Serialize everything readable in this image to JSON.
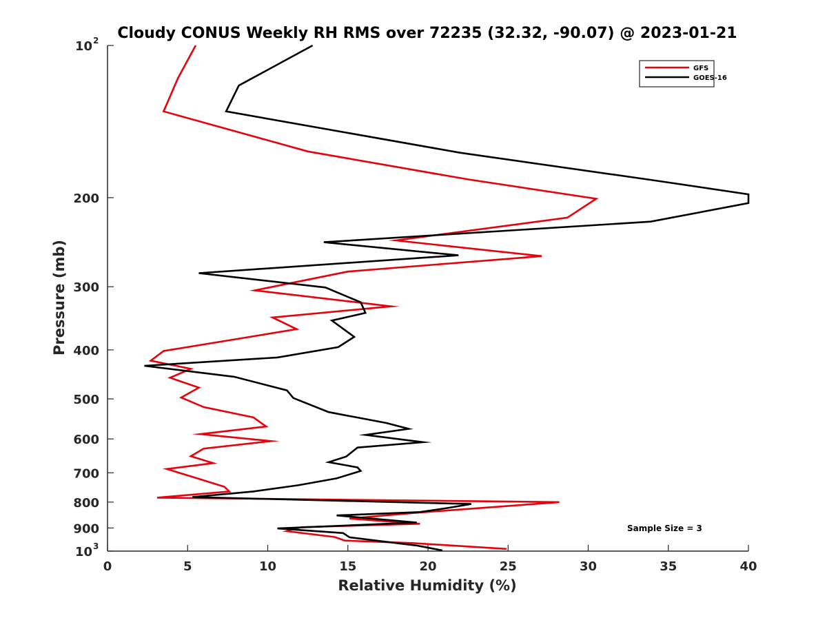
{
  "chart_data": {
    "type": "line",
    "title": "Cloudy CONUS Weekly RH RMS over 72235 (32.32, -90.07) @ 2023-01-21",
    "xlabel": "Relative Humidity (%)",
    "ylabel": "Pressure (mb)",
    "xlim": [
      0,
      40
    ],
    "ylim": [
      100,
      1000
    ],
    "yscale": "log",
    "y_reversed": true,
    "xticks": [
      "0",
      "5",
      "10",
      "15",
      "20",
      "25",
      "30",
      "35",
      "40"
    ],
    "yticks": [
      {
        "value": 100,
        "label": "10",
        "sup": "2"
      },
      {
        "value": 200,
        "label": "200",
        "sup": ""
      },
      {
        "value": 300,
        "label": "300",
        "sup": ""
      },
      {
        "value": 400,
        "label": "400",
        "sup": ""
      },
      {
        "value": 500,
        "label": "500",
        "sup": ""
      },
      {
        "value": 600,
        "label": "600",
        "sup": ""
      },
      {
        "value": 700,
        "label": "700",
        "sup": ""
      },
      {
        "value": 800,
        "label": "800",
        "sup": ""
      },
      {
        "value": 900,
        "label": "900",
        "sup": ""
      },
      {
        "value": 1000,
        "label": "10",
        "sup": "3"
      }
    ],
    "legend_position": "top-right",
    "annotation": "Sample Size = 3",
    "series": [
      {
        "name": "GFS",
        "color": "#e8000b",
        "points": [
          [
            5.5,
            100
          ],
          [
            4.4,
            116
          ],
          [
            3.5,
            135
          ],
          [
            12.5,
            162
          ],
          [
            22.5,
            184
          ],
          [
            30.5,
            201
          ],
          [
            28.7,
            219
          ],
          [
            18.0,
            243
          ],
          [
            27.1,
            261
          ],
          [
            15.0,
            280
          ],
          [
            9.2,
            305
          ],
          [
            17.7,
            328
          ],
          [
            10.3,
            345
          ],
          [
            11.8,
            364
          ],
          [
            8.0,
            381
          ],
          [
            3.5,
            402
          ],
          [
            2.7,
            420
          ],
          [
            5.2,
            436
          ],
          [
            3.9,
            454
          ],
          [
            5.7,
            475
          ],
          [
            4.6,
            497
          ],
          [
            6.0,
            519
          ],
          [
            9.1,
            544
          ],
          [
            9.9,
            567
          ],
          [
            5.8,
            587
          ],
          [
            10.2,
            606
          ],
          [
            6.0,
            627
          ],
          [
            5.2,
            649
          ],
          [
            6.6,
            670
          ],
          [
            3.7,
            688
          ],
          [
            5.6,
            718
          ],
          [
            7.3,
            746
          ],
          [
            7.6,
            762
          ],
          [
            3.1,
            784
          ],
          [
            28.2,
            800
          ],
          [
            19.0,
            841
          ],
          [
            15.1,
            862
          ],
          [
            19.5,
            883
          ],
          [
            12.1,
            897
          ],
          [
            11.2,
            913
          ],
          [
            14.2,
            938
          ],
          [
            14.8,
            953
          ],
          [
            19.0,
            964
          ],
          [
            24.9,
            990
          ]
        ]
      },
      {
        "name": "GOES-16",
        "color": "#000000",
        "points": [
          [
            12.8,
            100
          ],
          [
            8.2,
            120
          ],
          [
            7.4,
            135
          ],
          [
            22.0,
            163
          ],
          [
            34.2,
            185
          ],
          [
            40.0,
            197
          ],
          [
            40.0,
            205
          ],
          [
            33.9,
            223
          ],
          [
            13.5,
            245
          ],
          [
            21.9,
            260
          ],
          [
            5.7,
            282
          ],
          [
            13.6,
            301
          ],
          [
            15.8,
            322
          ],
          [
            16.1,
            338
          ],
          [
            14.0,
            350
          ],
          [
            15.4,
            377
          ],
          [
            14.4,
            395
          ],
          [
            10.6,
            414
          ],
          [
            2.3,
            430
          ],
          [
            7.9,
            452
          ],
          [
            11.2,
            481
          ],
          [
            11.6,
            498
          ],
          [
            13.8,
            531
          ],
          [
            17.4,
            558
          ],
          [
            18.8,
            573
          ],
          [
            16.1,
            589
          ],
          [
            19.7,
            609
          ],
          [
            15.6,
            624
          ],
          [
            14.9,
            650
          ],
          [
            13.8,
            667
          ],
          [
            15.6,
            683
          ],
          [
            15.8,
            694
          ],
          [
            14.3,
            718
          ],
          [
            11.9,
            741
          ],
          [
            9.1,
            762
          ],
          [
            5.3,
            782
          ],
          [
            22.7,
            807
          ],
          [
            21.2,
            822
          ],
          [
            19.5,
            837
          ],
          [
            14.3,
            850
          ],
          [
            19.3,
            878
          ],
          [
            10.6,
            902
          ],
          [
            14.7,
            921
          ],
          [
            15.1,
            939
          ],
          [
            19.3,
            975
          ],
          [
            20.9,
            997
          ]
        ]
      }
    ]
  }
}
